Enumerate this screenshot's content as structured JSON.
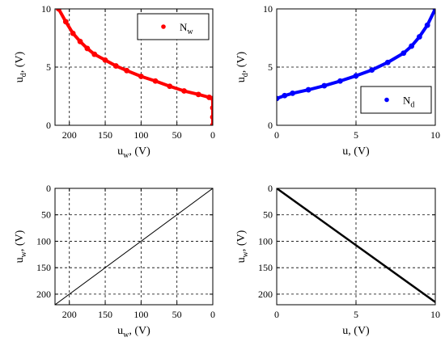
{
  "chart_data": [
    {
      "id": "top-left",
      "type": "scatter",
      "xlabel": "u_w, (V)",
      "ylabel": "u_d, (V)",
      "xlim": [
        220,
        0
      ],
      "ylim": [
        0,
        10
      ],
      "x_reversed": true,
      "y_reversed": false,
      "xticks": [
        200,
        150,
        100,
        50,
        0
      ],
      "yticks": [
        0,
        5,
        10
      ],
      "grid": true,
      "legend": {
        "label": "N_w",
        "position": "top-right"
      },
      "series": [
        {
          "name": "N_w",
          "color": "#ff0000",
          "points": [
            [
              215,
              10
            ],
            [
              205,
              8.9
            ],
            [
              195,
              7.9
            ],
            [
              185,
              7.2
            ],
            [
              175,
              6.6
            ],
            [
              165,
              6.1
            ],
            [
              150,
              5.6
            ],
            [
              135,
              5.1
            ],
            [
              120,
              4.7
            ],
            [
              100,
              4.2
            ],
            [
              80,
              3.8
            ],
            [
              60,
              3.35
            ],
            [
              40,
              2.95
            ],
            [
              20,
              2.65
            ],
            [
              5,
              2.4
            ],
            [
              0,
              2.3
            ],
            [
              0,
              1.5
            ],
            [
              0,
              0.7
            ],
            [
              0,
              0
            ]
          ]
        }
      ]
    },
    {
      "id": "top-right",
      "type": "scatter",
      "xlabel": "u, (V)",
      "ylabel": "u_d, (V)",
      "xlim": [
        0,
        10
      ],
      "ylim": [
        0,
        10
      ],
      "x_reversed": false,
      "y_reversed": false,
      "xticks": [
        0,
        5,
        10
      ],
      "yticks": [
        0,
        5,
        10
      ],
      "grid": true,
      "legend": {
        "label": "N_d",
        "position": "right"
      },
      "series": [
        {
          "name": "N_d",
          "color": "#0000ff",
          "points": [
            [
              0,
              2.3
            ],
            [
              0.5,
              2.55
            ],
            [
              1,
              2.75
            ],
            [
              2,
              3.05
            ],
            [
              3,
              3.4
            ],
            [
              4,
              3.8
            ],
            [
              5,
              4.25
            ],
            [
              6,
              4.75
            ],
            [
              7,
              5.4
            ],
            [
              8,
              6.2
            ],
            [
              8.5,
              6.8
            ],
            [
              9,
              7.6
            ],
            [
              9.5,
              8.6
            ],
            [
              10,
              10
            ]
          ]
        }
      ]
    },
    {
      "id": "bottom-left",
      "type": "line",
      "xlabel": "u_w, (V)",
      "ylabel": "u_w, (V)",
      "xlim": [
        220,
        0
      ],
      "ylim": [
        0,
        220
      ],
      "x_reversed": true,
      "y_reversed": true,
      "xticks": [
        200,
        150,
        100,
        50,
        0
      ],
      "yticks": [
        0,
        50,
        100,
        150,
        200
      ],
      "grid": true,
      "legend": null,
      "series": [
        {
          "name": "",
          "color": "#000000",
          "points": [
            [
              220,
              220
            ],
            [
              0,
              0
            ]
          ]
        }
      ]
    },
    {
      "id": "bottom-right",
      "type": "line",
      "xlabel": "u, (V)",
      "ylabel": "u_w, (V)",
      "xlim": [
        0,
        10
      ],
      "ylim": [
        0,
        220
      ],
      "x_reversed": false,
      "y_reversed": true,
      "xticks": [
        0,
        5,
        10
      ],
      "yticks": [
        0,
        50,
        100,
        150,
        200
      ],
      "grid": true,
      "legend": null,
      "series": [
        {
          "name": "",
          "color": "#000000",
          "points": [
            [
              0,
              0
            ],
            [
              10,
              215
            ]
          ]
        }
      ]
    }
  ]
}
